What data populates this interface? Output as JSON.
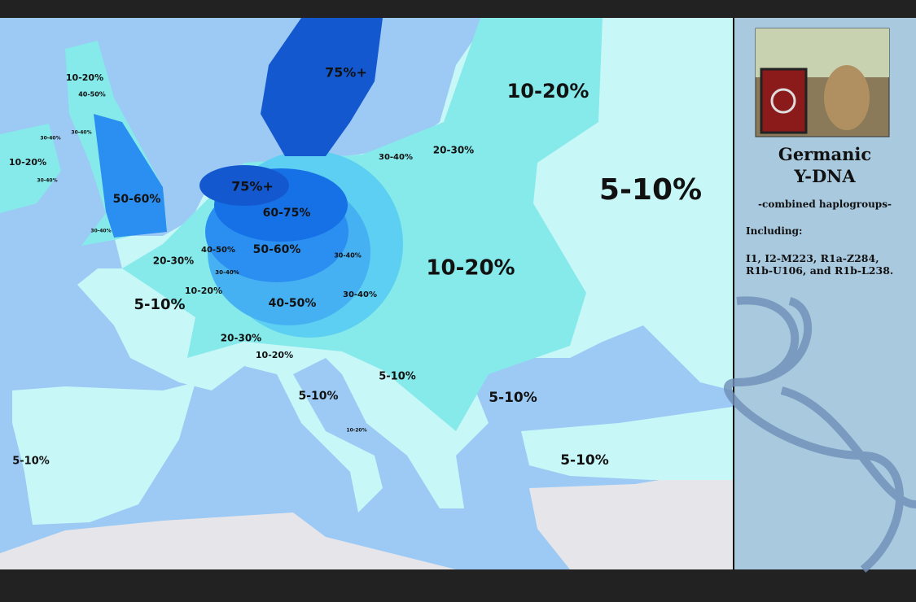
{
  "map": {
    "labels": [
      "75%+",
      "10-20%",
      "40-50%",
      "10-20%",
      "30-40%",
      "30-40%",
      "10-20%",
      "30-40%",
      "20-30%",
      "75%+",
      "30-40%",
      "5-10%",
      "50-60%",
      "60-75%",
      "30-40%",
      "40-50%",
      "50-60%",
      "30-40%",
      "20-30%",
      "10-20%",
      "30-40%",
      "10-20%",
      "30-40%",
      "5-10%",
      "40-50%",
      "20-30%",
      "10-20%",
      "5-10%",
      "5-10%",
      "5-10%",
      "10-20%",
      "5-10%",
      "5-10%"
    ]
  },
  "sidebar": {
    "title": [
      "Germanic",
      "Y-DNA"
    ],
    "subtitle": "-combined haplogroups-",
    "including_heading": "Including:",
    "including_text": "I1, I2-M223, R1a-Z284, R1b-U106, and R1b-L238."
  }
}
